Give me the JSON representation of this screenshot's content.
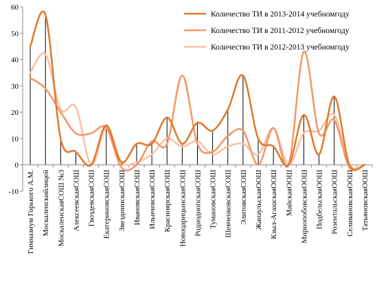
{
  "chart_data": {
    "type": "line",
    "title": "",
    "xlabel": "",
    "ylabel": "",
    "ylim": [
      -10,
      60
    ],
    "yticks": [
      -10,
      0,
      10,
      20,
      30,
      40,
      50,
      60
    ],
    "grid": false,
    "legend_position": "top-right",
    "categories": [
      "Гимназиум Горького А.М.",
      "Москаленскийлицей",
      "МоскаленскаяСОШ №3",
      "АлексеевскаяСОШ",
      "ГвоздевскаяСОШ",
      "ЕкатериновскаяСОШ",
      "ЗвезднинскаяСОШ",
      "ИвановскаяСОШ",
      "ИльичевскаяСОШ",
      "КрасноярскаяСОШ",
      "НовоцарицынскаяСОШ",
      "РодноднопскаяСОШ",
      "ТумановскаяСОШ",
      "ШевченковскаяСОШ",
      "ЭлитовскаяСОШ",
      "ЖанаульскаяООШ",
      "Кзыл-АгашскаяООШ",
      "МайскаяООШ",
      "МирнопобовскаяООШ",
      "ПодбельскаяООШ",
      "РозентальскаяООШ",
      "СеливановскаяООШ",
      "ТатьяновскаяООШ"
    ],
    "series": [
      {
        "name": "Количество ТИ в 2013-2014 учебномгоду",
        "color": "#e07a2e",
        "width": 2.6,
        "drop_lines": true,
        "values": [
          45,
          57,
          10,
          5,
          0,
          15,
          1,
          8,
          8,
          18,
          8,
          16,
          13,
          21,
          34,
          10,
          7,
          0,
          19,
          4,
          26,
          0,
          0
        ]
      },
      {
        "name": "Количество ТИ в 2011-2012 учебномгоду",
        "color": "#f0996a",
        "width": 2.6,
        "drop_lines": false,
        "values": [
          33,
          29,
          20,
          12,
          12,
          14,
          -1,
          0,
          9,
          8,
          34,
          8,
          5,
          11,
          13,
          0,
          14,
          0,
          43,
          12,
          17,
          -1,
          0
        ]
      },
      {
        "name": "Количество ТИ в 2012-2013 учебномгоду",
        "color": "#f7c3a2",
        "width": 2.6,
        "drop_lines": false,
        "values": [
          35,
          42,
          21,
          22,
          0,
          14,
          1,
          1,
          4,
          10,
          7,
          9,
          4,
          7,
          8,
          4,
          14,
          0,
          12,
          13,
          19,
          0,
          0
        ]
      }
    ]
  }
}
